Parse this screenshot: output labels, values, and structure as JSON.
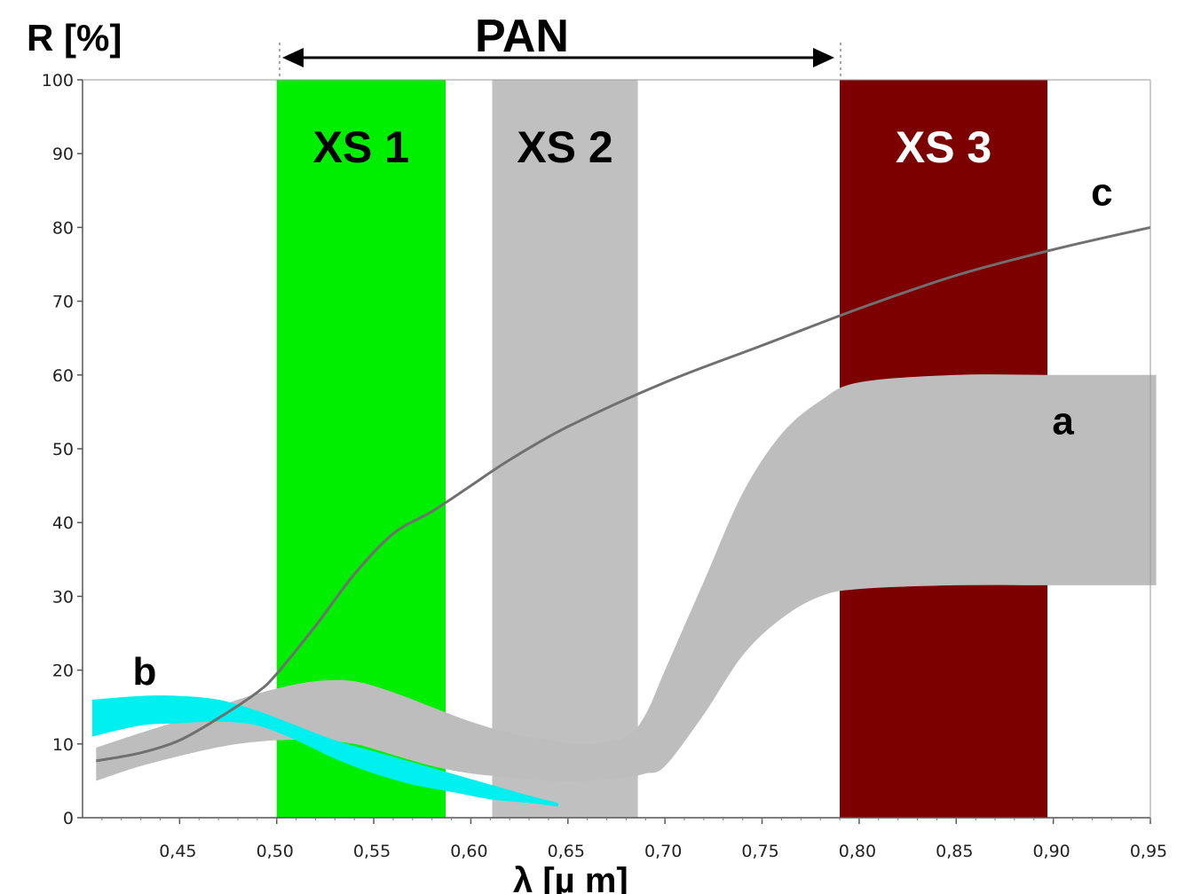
{
  "chart_data": {
    "type": "area",
    "y_title": "R [%]",
    "x_title": "λ [µ m]",
    "pan_label": "PAN",
    "pan_range": [
      0.5,
      0.79
    ],
    "xlim": [
      0.4,
      0.95
    ],
    "ylim": [
      0,
      100
    ],
    "x_ticks": [
      0.45,
      0.5,
      0.55,
      0.6,
      0.65,
      0.7,
      0.75,
      0.8,
      0.85,
      0.9,
      0.95
    ],
    "x_tick_labels": [
      "0,45",
      "0,50",
      "0,55",
      "0,60",
      "0,65",
      "0,70",
      "0,75",
      "0,80",
      "0,85",
      "0,90",
      "0,95"
    ],
    "y_ticks": [
      0,
      10,
      20,
      30,
      40,
      50,
      60,
      70,
      80,
      90,
      100
    ],
    "y_tick_labels": [
      "0",
      "10",
      "20",
      "30",
      "40",
      "50",
      "60",
      "70",
      "80",
      "90",
      "100"
    ],
    "bands": [
      {
        "label": "XS 1",
        "x0": 0.5,
        "x1": 0.587,
        "color": "#00ee00",
        "text_color": "#000000"
      },
      {
        "label": "XS 2",
        "x0": 0.611,
        "x1": 0.686,
        "color": "#c0c0c0",
        "text_color": "#000000"
      },
      {
        "label": "XS 3",
        "x0": 0.79,
        "x1": 0.897,
        "color": "#7c0000",
        "text_color": "#ffffff"
      }
    ],
    "series": [
      {
        "name": "a",
        "kind": "range",
        "color": "#bdbdbd",
        "x": [
          0.407,
          0.43,
          0.46,
          0.48,
          0.5,
          0.52,
          0.54,
          0.56,
          0.58,
          0.6,
          0.62,
          0.64,
          0.66,
          0.68,
          0.69,
          0.7,
          0.72,
          0.74,
          0.76,
          0.78,
          0.8,
          0.85,
          0.9,
          0.953
        ],
        "upper": [
          9.5,
          11.5,
          14,
          16,
          17.5,
          18.5,
          18.5,
          17,
          15,
          13,
          11.5,
          10.5,
          10,
          11,
          14,
          20,
          32,
          44,
          52,
          56.5,
          59,
          60,
          60,
          60
        ],
        "lower": [
          5,
          7,
          9,
          10,
          10.5,
          10.5,
          10,
          8.5,
          7,
          6,
          5.5,
          5,
          5,
          5.5,
          6,
          7,
          14,
          22,
          27,
          30,
          31,
          31.5,
          31.5,
          31.5
        ]
      },
      {
        "name": "b",
        "kind": "range",
        "color": "#00f0f0",
        "x": [
          0.405,
          0.43,
          0.45,
          0.47,
          0.49,
          0.51,
          0.53,
          0.55,
          0.57,
          0.59,
          0.61,
          0.63,
          0.645
        ],
        "upper": [
          16,
          16.5,
          16.5,
          16,
          14.5,
          12.5,
          10.5,
          9,
          7.5,
          6,
          4.5,
          3,
          2
        ],
        "lower": [
          11,
          12.5,
          12.8,
          13,
          12.5,
          10.5,
          8,
          6,
          4.5,
          3.5,
          2.5,
          2,
          1.5
        ]
      },
      {
        "name": "c",
        "kind": "line",
        "color": "#707070",
        "x": [
          0.407,
          0.43,
          0.45,
          0.47,
          0.49,
          0.5,
          0.52,
          0.54,
          0.56,
          0.58,
          0.6,
          0.62,
          0.65,
          0.7,
          0.75,
          0.8,
          0.85,
          0.9,
          0.95
        ],
        "y": [
          7.7,
          8.8,
          10.5,
          13.5,
          17,
          19.5,
          26,
          33,
          38.5,
          41.5,
          45,
          48.5,
          53,
          59,
          64,
          69,
          73.5,
          77,
          80
        ]
      }
    ],
    "series_labels": [
      {
        "text": "a",
        "x": 0.905,
        "y": 52
      },
      {
        "text": "b",
        "x": 0.432,
        "y": 18
      },
      {
        "text": "c",
        "x": 0.925,
        "y": 83
      }
    ]
  }
}
